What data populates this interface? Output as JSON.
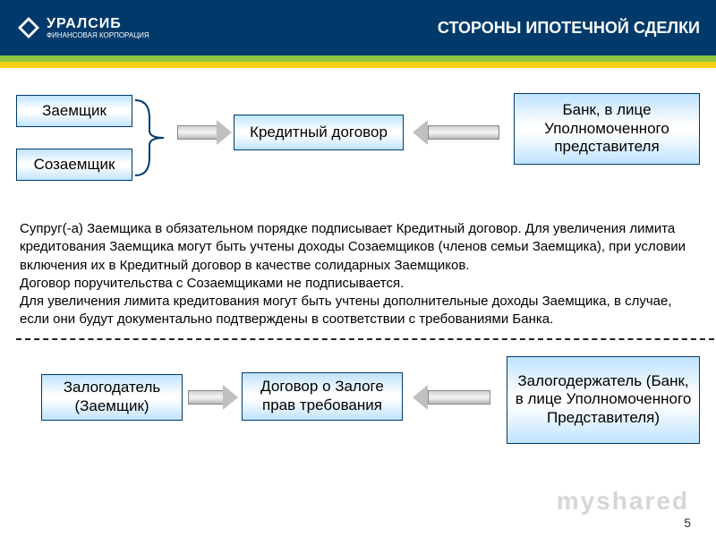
{
  "header": {
    "logo_brand": "УРАЛСИБ",
    "logo_sub": "ФИНАНСОВАЯ КОРПОРАЦИЯ",
    "title": "СТОРОНЫ ИПОТЕЧНОЙ СДЕЛКИ",
    "bg_color": "#003a6b",
    "stripe_green": "#8cc63f",
    "stripe_yellow": "#f7d117"
  },
  "diagram1": {
    "type": "flowchart",
    "nodes": {
      "borrower": "Заемщик",
      "coborrower": "Созаемщик",
      "loan_contract": "Кредитный договор",
      "bank": "Банк, в лице Уполномоченного представителя"
    },
    "node_fill_gradient": [
      "#bfe3ff",
      "#ffffff",
      "#bfe3ff"
    ],
    "node_border": "#003a6b",
    "font_size": 17
  },
  "paragraph": "Супруг(-а) Заемщика в обязательном порядке подписывает Кредитный договор. Для увеличения лимита кредитования Заемщика могут быть учтены доходы Созаемщиков (членов семьи Заемщика), при условии включения их в Кредитный договор в качестве солидарных Заемщиков.\nДоговор поручительства с Созаемщиками не подписывается.\nДля увеличения лимита кредитования могут быть учтены дополнительные доходы Заемщика, в случае, если они будут документально подтверждены в соответствии с требованиями Банка.",
  "divider": {
    "style": "dashed",
    "color": "#222222"
  },
  "diagram2": {
    "type": "flowchart",
    "nodes": {
      "pledgor": "Залогодатель (Заемщик)",
      "pledge_contract": "Договор о Залоге прав требования",
      "pledgee": "Залогодержатель (Банк, в лице Уполномоченного Представителя)"
    },
    "node_fill_gradient": [
      "#bfe3ff",
      "#ffffff",
      "#bfe3ff"
    ],
    "node_border": "#003a6b",
    "font_size": 17
  },
  "watermark": "myshared",
  "page_number": "5"
}
